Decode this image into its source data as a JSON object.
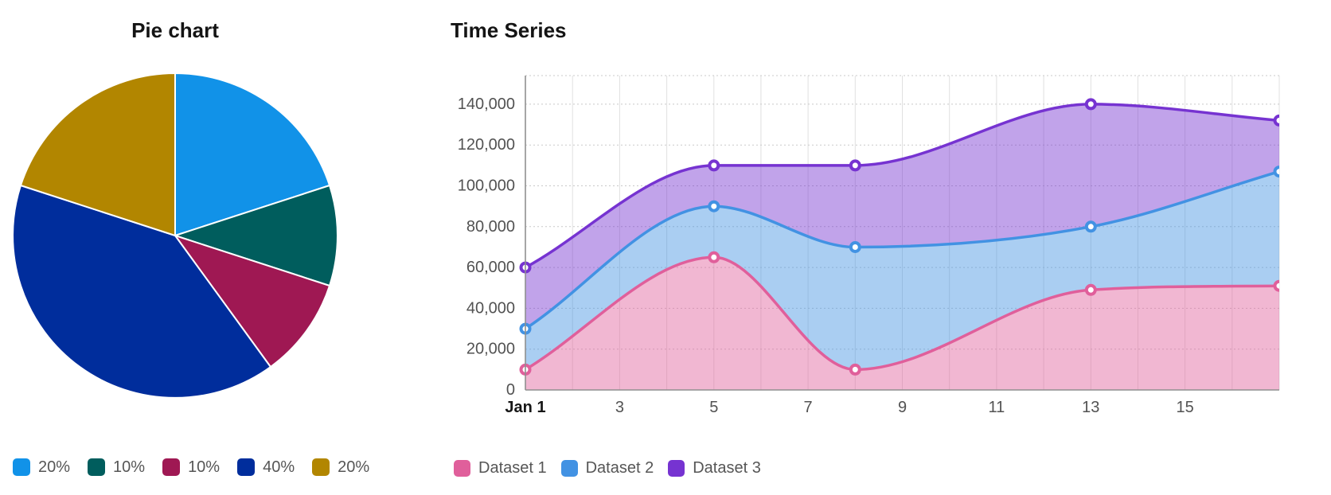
{
  "page": {
    "background": "#ffffff"
  },
  "pie_chart": {
    "title": "Pie chart",
    "legend": [
      {
        "label": "20%",
        "color": "#1192e8"
      },
      {
        "label": "10%",
        "color": "#005d5d"
      },
      {
        "label": "10%",
        "color": "#9f1853"
      },
      {
        "label": "40%",
        "color": "#002d9c"
      },
      {
        "label": "20%",
        "color": "#b28600"
      }
    ]
  },
  "time_series": {
    "title": "Time Series",
    "legend": [
      {
        "label": "Dataset 1",
        "color": "#e05f9b"
      },
      {
        "label": "Dataset 2",
        "color": "#4292e3"
      },
      {
        "label": "Dataset 3",
        "color": "#7633d1"
      }
    ]
  },
  "chart_data": [
    {
      "type": "pie",
      "title": "Pie chart",
      "labels": [
        "20%",
        "10%",
        "10%",
        "40%",
        "20%"
      ],
      "values": [
        20,
        10,
        10,
        40,
        20
      ],
      "colors": [
        "#1192e8",
        "#005d5d",
        "#9f1853",
        "#002d9c",
        "#b28600"
      ],
      "start_angle_deg": 0,
      "direction": "clockwise",
      "legend_position": "bottom"
    },
    {
      "type": "area",
      "title": "Time Series",
      "x_unit": "day of January",
      "x": [
        1,
        5,
        8,
        13,
        17
      ],
      "series": [
        {
          "name": "Dataset 1",
          "color": "#e05f9b",
          "values": [
            10000,
            65000,
            10000,
            49000,
            51000
          ]
        },
        {
          "name": "Dataset 2",
          "color": "#4292e3",
          "values": [
            30000,
            90000,
            70000,
            80000,
            107000
          ]
        },
        {
          "name": "Dataset 3",
          "color": "#7633d1",
          "values": [
            60000,
            110000,
            110000,
            140000,
            132000
          ]
        }
      ],
      "x_tick_days": [
        1,
        3,
        5,
        7,
        9,
        11,
        13,
        15
      ],
      "x_tick_labels": [
        "Jan 1",
        "3",
        "5",
        "7",
        "9",
        "11",
        "13",
        "15"
      ],
      "y_ticks": [
        0,
        20000,
        40000,
        60000,
        80000,
        100000,
        120000,
        140000
      ],
      "y_tick_labels": [
        "0",
        "20,000",
        "40,000",
        "60,000",
        "80,000",
        "100,000",
        "120,000",
        "140,000"
      ],
      "xlim": [
        1,
        17
      ],
      "ylim": [
        0,
        154000
      ],
      "grid": true,
      "curve": "monotone",
      "point_style": "hollow-circle",
      "fill_opacity": 0.45,
      "legend_position": "bottom"
    }
  ],
  "style": {
    "axis_color": "#8f8f8f",
    "grid_color": "#e0e0e0",
    "grid_dotted_color": "#c9c9c9",
    "tick_label_color": "#525252",
    "first_x_tick_color": "#161616",
    "legend_text_color": "#565656",
    "title_color": "#141414"
  }
}
